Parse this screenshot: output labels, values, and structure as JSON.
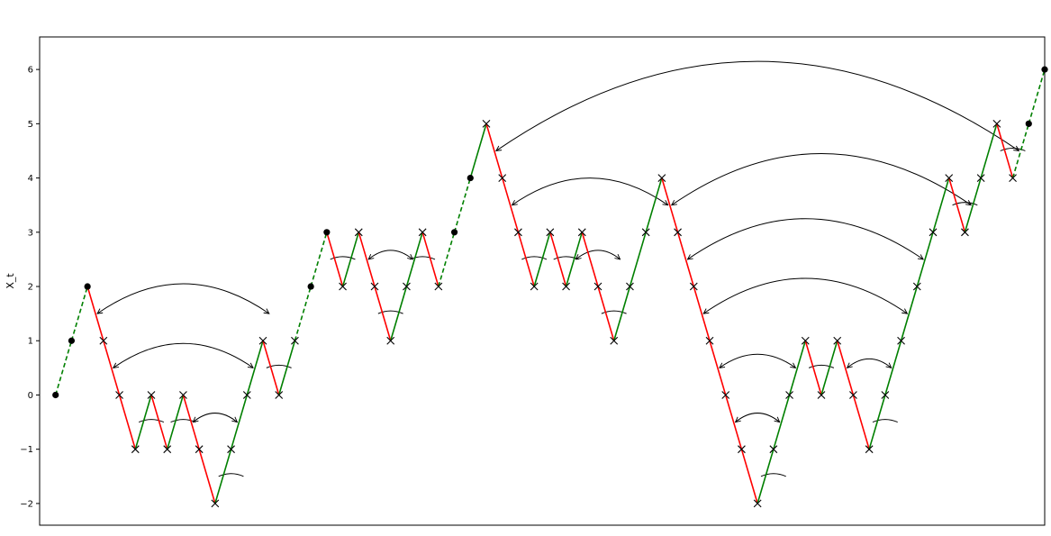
{
  "chart_data": {
    "type": "line",
    "title": "",
    "xlabel": "",
    "ylabel": "X_t",
    "ylim": [
      -2.4,
      6.6
    ],
    "xlim": [
      -1,
      62
    ],
    "yticks": [
      -2,
      -1,
      0,
      1,
      2,
      3,
      4,
      5,
      6
    ],
    "ytick_labels": [
      "−2",
      "−1",
      "0",
      "1",
      "2",
      "3",
      "4",
      "5",
      "6"
    ],
    "grid": false,
    "legend": "none",
    "path": [
      0,
      1,
      2,
      1,
      0,
      -1,
      0,
      -1,
      0,
      -1,
      -2,
      -1,
      0,
      1,
      0,
      1,
      2,
      3,
      2,
      3,
      2,
      1,
      2,
      3,
      2,
      3,
      4,
      5,
      4,
      3,
      2,
      3,
      2,
      3,
      2,
      1,
      2,
      3,
      4,
      3,
      2,
      1,
      0,
      -1,
      -2,
      -1,
      0,
      1,
      0,
      1,
      0,
      -1,
      0,
      1,
      2,
      3,
      4,
      3,
      4,
      5,
      4,
      5,
      6
    ],
    "record_times": [
      0,
      1,
      2,
      16,
      17,
      25,
      26,
      61,
      62
    ],
    "series": [
      {
        "name": "",
        "style": "dashed",
        "color": "#008000"
      },
      {
        "name": "",
        "style": "solid",
        "color": "#ff0000"
      },
      {
        "name": "",
        "style": "solid",
        "color": "#008000"
      }
    ],
    "arcs": [
      [
        2,
        13
      ],
      [
        3,
        12
      ],
      [
        5,
        6
      ],
      [
        7,
        8
      ],
      [
        8,
        11
      ],
      [
        10,
        11
      ],
      [
        13,
        14
      ],
      [
        17,
        18
      ],
      [
        19,
        22
      ],
      [
        20,
        21
      ],
      [
        22,
        23
      ],
      [
        27,
        60
      ],
      [
        28,
        38
      ],
      [
        29,
        30
      ],
      [
        31,
        32
      ],
      [
        32,
        35
      ],
      [
        34,
        35
      ],
      [
        38,
        57
      ],
      [
        39,
        54
      ],
      [
        40,
        53
      ],
      [
        41,
        46
      ],
      [
        42,
        45
      ],
      [
        44,
        45
      ],
      [
        47,
        48
      ],
      [
        49,
        52
      ],
      [
        51,
        52
      ],
      [
        56,
        57
      ],
      [
        59,
        60
      ]
    ],
    "colors": {
      "up": "#008000",
      "down": "#ff0000",
      "marker": "#000000",
      "arc": "#000000"
    }
  }
}
